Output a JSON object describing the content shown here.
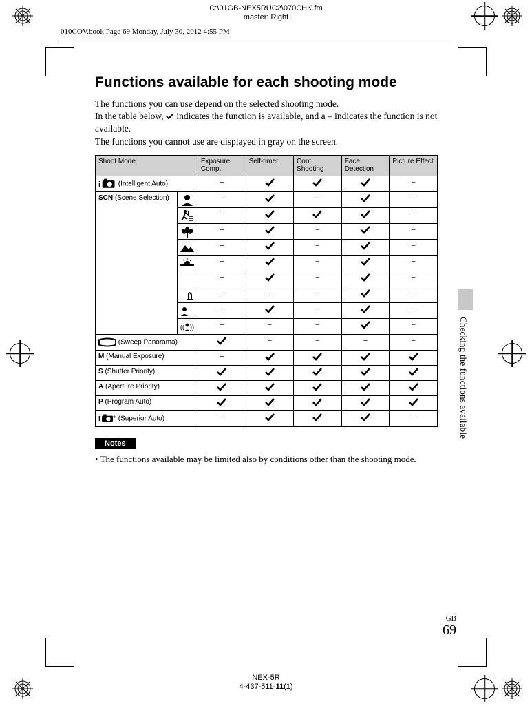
{
  "header": {
    "file_path": "C:\\01GB-NEX5RUC2\\070CHK.fm",
    "master": "master: Right",
    "meta_line": "010COV.book  Page 69  Monday, July 30, 2012  4:55 PM"
  },
  "title": "Functions available for each shooting mode",
  "intro_lines": [
    "The functions you can use depend on the selected shooting mode.",
    "In the table below, ✔ indicates the function is available, and a – indicates the function is not available.",
    "The functions you cannot use are displayed in gray on the screen."
  ],
  "table": {
    "headers": {
      "shoot_mode": "Shoot Mode",
      "exposure_comp": "Exposure Comp.",
      "self_timer": "Self-timer",
      "cont_shooting": "Cont. Shooting",
      "face_detection": "Face Detection",
      "picture_effect": "Picture Effect"
    },
    "rows": {
      "intelligent_auto": {
        "label": " (Intelligent Auto)",
        "prefix_icon": "iauto",
        "v": [
          "–",
          "✔",
          "✔",
          "✔",
          "–"
        ]
      },
      "scn_group_label": "SCN (Scene Selection)",
      "scn_rows": [
        {
          "icon": "portrait",
          "v": [
            "–",
            "✔",
            "–",
            "✔",
            "–"
          ]
        },
        {
          "icon": "sports",
          "v": [
            "–",
            "✔",
            "✔",
            "✔",
            "–"
          ]
        },
        {
          "icon": "macro",
          "v": [
            "–",
            "✔",
            "–",
            "✔",
            "–"
          ]
        },
        {
          "icon": "landscape",
          "v": [
            "–",
            "✔",
            "–",
            "✔",
            "–"
          ]
        },
        {
          "icon": "sunset",
          "v": [
            "–",
            "✔",
            "–",
            "✔",
            "–"
          ]
        },
        {
          "icon": "night",
          "v": [
            "–",
            "✔",
            "–",
            "✔",
            "–"
          ]
        },
        {
          "icon": "handheld_night",
          "v": [
            "–",
            "–",
            "–",
            "✔",
            "–"
          ]
        },
        {
          "icon": "night_portrait",
          "v": [
            "–",
            "✔",
            "–",
            "✔",
            "–"
          ]
        },
        {
          "icon": "anti_blur",
          "v": [
            "–",
            "–",
            "–",
            "✔",
            "–"
          ]
        }
      ],
      "sweep_panorama": {
        "label": " (Sweep Panorama)",
        "prefix_icon": "panorama",
        "v": [
          "✔",
          "–",
          "–",
          "–",
          "–"
        ]
      },
      "manual": {
        "label": "M (Manual Exposure)",
        "v": [
          "–",
          "✔",
          "✔",
          "✔",
          "✔"
        ]
      },
      "shutter": {
        "label": "S (Shutter Priority)",
        "v": [
          "✔",
          "✔",
          "✔",
          "✔",
          "✔"
        ]
      },
      "aperture": {
        "label": "A (Aperture Priority)",
        "v": [
          "✔",
          "✔",
          "✔",
          "✔",
          "✔"
        ]
      },
      "program": {
        "label": "P (Program Auto)",
        "v": [
          "✔",
          "✔",
          "✔",
          "✔",
          "✔"
        ]
      },
      "superior_auto": {
        "label": " (Superior Auto)",
        "prefix_icon": "iauto_plus",
        "v": [
          "–",
          "✔",
          "✔",
          "✔",
          "–"
        ]
      }
    }
  },
  "notes_heading": "Notes",
  "notes_bullet": "• The functions available may be limited also by conditions other than the shooting mode.",
  "side_label": "Checking the functions available",
  "page": {
    "gb": "GB",
    "number": "69"
  },
  "footer": {
    "model": "NEX-5R",
    "doc": "4-437-511-11(1)"
  }
}
